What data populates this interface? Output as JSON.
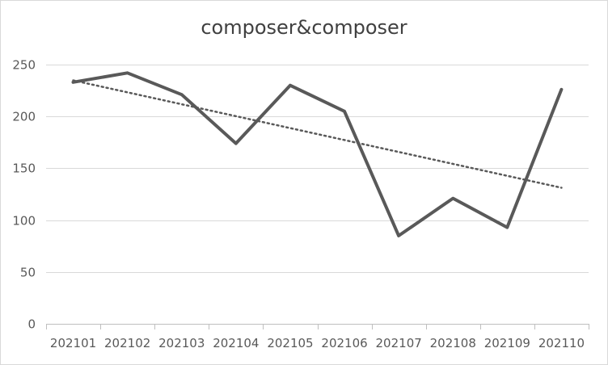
{
  "chart_data": {
    "type": "line",
    "title": "composer&composer",
    "xlabel": "",
    "ylabel": "",
    "categories": [
      "202101",
      "202102",
      "202103",
      "202104",
      "202105",
      "202106",
      "202107",
      "202108",
      "202109",
      "202110"
    ],
    "series": [
      {
        "values": [
          233,
          242,
          221,
          174,
          230,
          205,
          85,
          121,
          93,
          226
        ],
        "color": "#595959",
        "style": "solid"
      }
    ],
    "trendline": {
      "type": "linear",
      "color": "#595959",
      "style": "dotted"
    },
    "ylim": [
      0,
      250
    ],
    "yticks": [
      0,
      50,
      100,
      150,
      200,
      250
    ],
    "grid": true,
    "legend": "none"
  }
}
